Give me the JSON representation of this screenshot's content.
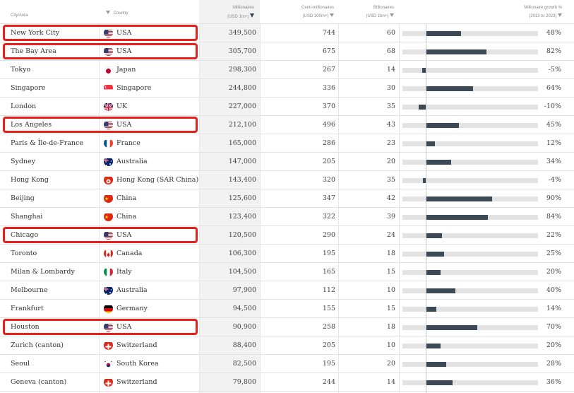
{
  "headers": {
    "city": "City/Area",
    "country": "Country",
    "millionaires": [
      "Millionaires",
      "(USD 1m+)"
    ],
    "centi": [
      "Centi-millionaires",
      "(USD 100m+)"
    ],
    "billionaires": [
      "Billionaires",
      "(USD 1bn+)"
    ],
    "growth": [
      "Millionaire growth %",
      "(2013 to 2023)"
    ]
  },
  "colors": {
    "highlight": "#e8201b",
    "bar": "#3c4a57",
    "bar_track": "#e3e3e3",
    "sorted_column_bg": "#f2f2f2"
  },
  "rows": [
    {
      "city": "New York City",
      "country": "USA",
      "flag": "usa-flag-icon",
      "millionaires": "349,500",
      "centi": "744",
      "billionaires": "60",
      "growth": "48%",
      "growth_value": 48,
      "highlighted": true
    },
    {
      "city": "The Bay Area",
      "country": "USA",
      "flag": "usa-flag-icon",
      "millionaires": "305,700",
      "centi": "675",
      "billionaires": "68",
      "growth": "82%",
      "growth_value": 82,
      "highlighted": true
    },
    {
      "city": "Tokyo",
      "country": "Japan",
      "flag": "japan-flag-icon",
      "millionaires": "298,300",
      "centi": "267",
      "billionaires": "14",
      "growth": "-5%",
      "growth_value": -5,
      "highlighted": false
    },
    {
      "city": "Singapore",
      "country": "Singapore",
      "flag": "singapore-flag-icon",
      "millionaires": "244,800",
      "centi": "336",
      "billionaires": "30",
      "growth": "64%",
      "growth_value": 64,
      "highlighted": false
    },
    {
      "city": "London",
      "country": "UK",
      "flag": "uk-flag-icon",
      "millionaires": "227,000",
      "centi": "370",
      "billionaires": "35",
      "growth": "-10%",
      "growth_value": -10,
      "highlighted": false
    },
    {
      "city": "Los Angeles",
      "country": "USA",
      "flag": "usa-flag-icon",
      "millionaires": "212,100",
      "centi": "496",
      "billionaires": "43",
      "growth": "45%",
      "growth_value": 45,
      "highlighted": true
    },
    {
      "city": "Paris & Île-de-France",
      "country": "France",
      "flag": "france-flag-icon",
      "millionaires": "165,000",
      "centi": "286",
      "billionaires": "23",
      "growth": "12%",
      "growth_value": 12,
      "highlighted": false
    },
    {
      "city": "Sydney",
      "country": "Australia",
      "flag": "australia-flag-icon",
      "millionaires": "147,000",
      "centi": "205",
      "billionaires": "20",
      "growth": "34%",
      "growth_value": 34,
      "highlighted": false
    },
    {
      "city": "Hong Kong",
      "country": "Hong Kong (SAR China)",
      "flag": "hong-kong-flag-icon",
      "millionaires": "143,400",
      "centi": "320",
      "billionaires": "35",
      "growth": "-4%",
      "growth_value": -4,
      "highlighted": false
    },
    {
      "city": "Beijing",
      "country": "China",
      "flag": "china-flag-icon",
      "millionaires": "125,600",
      "centi": "347",
      "billionaires": "42",
      "growth": "90%",
      "growth_value": 90,
      "highlighted": false
    },
    {
      "city": "Shanghai",
      "country": "China",
      "flag": "china-flag-icon",
      "millionaires": "123,400",
      "centi": "322",
      "billionaires": "39",
      "growth": "84%",
      "growth_value": 84,
      "highlighted": false
    },
    {
      "city": "Chicago",
      "country": "USA",
      "flag": "usa-flag-icon",
      "millionaires": "120,500",
      "centi": "290",
      "billionaires": "24",
      "growth": "22%",
      "growth_value": 22,
      "highlighted": true
    },
    {
      "city": "Toronto",
      "country": "Canada",
      "flag": "canada-flag-icon",
      "millionaires": "106,300",
      "centi": "195",
      "billionaires": "18",
      "growth": "25%",
      "growth_value": 25,
      "highlighted": false
    },
    {
      "city": "Milan & Lombardy",
      "country": "Italy",
      "flag": "italy-flag-icon",
      "millionaires": "104,500",
      "centi": "165",
      "billionaires": "15",
      "growth": "20%",
      "growth_value": 20,
      "highlighted": false
    },
    {
      "city": "Melbourne",
      "country": "Australia",
      "flag": "australia-flag-icon",
      "millionaires": "97,900",
      "centi": "112",
      "billionaires": "10",
      "growth": "40%",
      "growth_value": 40,
      "highlighted": false
    },
    {
      "city": "Frankfurt",
      "country": "Germany",
      "flag": "germany-flag-icon",
      "millionaires": "94,500",
      "centi": "155",
      "billionaires": "15",
      "growth": "14%",
      "growth_value": 14,
      "highlighted": false
    },
    {
      "city": "Houston",
      "country": "USA",
      "flag": "usa-flag-icon",
      "millionaires": "90,900",
      "centi": "258",
      "billionaires": "18",
      "growth": "70%",
      "growth_value": 70,
      "highlighted": true
    },
    {
      "city": "Zurich (canton)",
      "country": "Switzerland",
      "flag": "switzerland-flag-icon",
      "millionaires": "88,400",
      "centi": "205",
      "billionaires": "10",
      "growth": "20%",
      "growth_value": 20,
      "highlighted": false
    },
    {
      "city": "Seoul",
      "country": "South Korea",
      "flag": "south-korea-flag-icon",
      "millionaires": "82,500",
      "centi": "195",
      "billionaires": "20",
      "growth": "28%",
      "growth_value": 28,
      "highlighted": false
    },
    {
      "city": "Geneva (canton)",
      "country": "Switzerland",
      "flag": "switzerland-flag-icon",
      "millionaires": "79,800",
      "centi": "244",
      "billionaires": "14",
      "growth": "36%",
      "growth_value": 36,
      "highlighted": false
    }
  ]
}
